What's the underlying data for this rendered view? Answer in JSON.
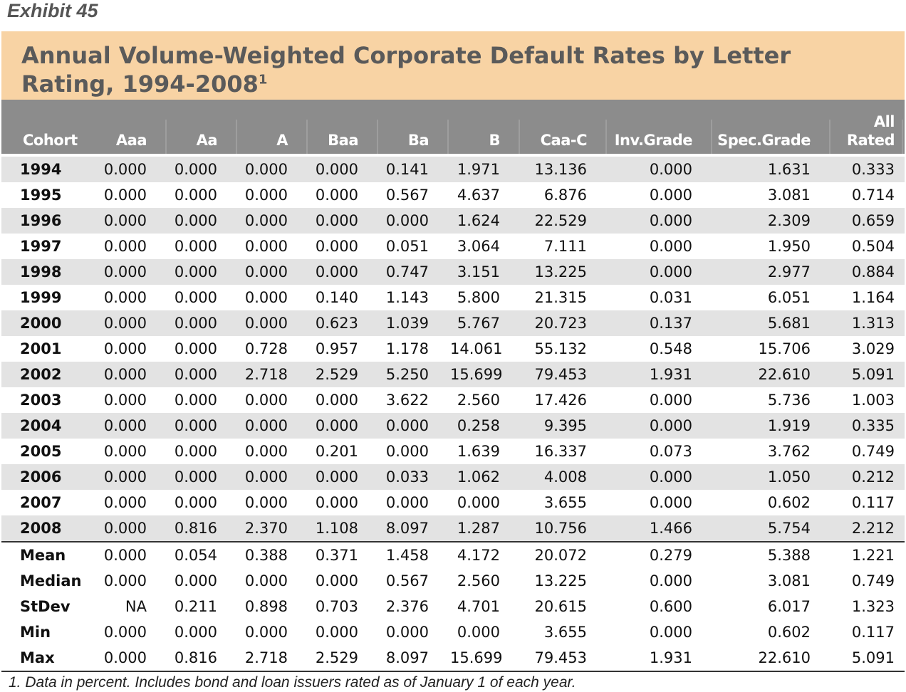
{
  "exhibit_label": "Exhibit 45",
  "title": {
    "text": "Annual Volume-Weighted Corporate Default Rates by Letter Rating, 1994-2008",
    "footnote_marker": "1"
  },
  "columns": [
    {
      "label": "Cohort",
      "label_top": ""
    },
    {
      "label": "Aaa",
      "label_top": ""
    },
    {
      "label": "Aa",
      "label_top": ""
    },
    {
      "label": "A",
      "label_top": ""
    },
    {
      "label": "Baa",
      "label_top": ""
    },
    {
      "label": "Ba",
      "label_top": ""
    },
    {
      "label": "B",
      "label_top": ""
    },
    {
      "label": "Caa-C",
      "label_top": ""
    },
    {
      "label": "Inv.Grade",
      "label_top": ""
    },
    {
      "label": "Spec.Grade",
      "label_top": ""
    },
    {
      "label": "Rated",
      "label_top": "All"
    }
  ],
  "rows": [
    [
      "1994",
      "0.000",
      "0.000",
      "0.000",
      "0.000",
      "0.141",
      "1.971",
      "13.136",
      "0.000",
      "1.631",
      "0.333"
    ],
    [
      "1995",
      "0.000",
      "0.000",
      "0.000",
      "0.000",
      "0.567",
      "4.637",
      "6.876",
      "0.000",
      "3.081",
      "0.714"
    ],
    [
      "1996",
      "0.000",
      "0.000",
      "0.000",
      "0.000",
      "0.000",
      "1.624",
      "22.529",
      "0.000",
      "2.309",
      "0.659"
    ],
    [
      "1997",
      "0.000",
      "0.000",
      "0.000",
      "0.000",
      "0.051",
      "3.064",
      "7.111",
      "0.000",
      "1.950",
      "0.504"
    ],
    [
      "1998",
      "0.000",
      "0.000",
      "0.000",
      "0.000",
      "0.747",
      "3.151",
      "13.225",
      "0.000",
      "2.977",
      "0.884"
    ],
    [
      "1999",
      "0.000",
      "0.000",
      "0.000",
      "0.140",
      "1.143",
      "5.800",
      "21.315",
      "0.031",
      "6.051",
      "1.164"
    ],
    [
      "2000",
      "0.000",
      "0.000",
      "0.000",
      "0.623",
      "1.039",
      "5.767",
      "20.723",
      "0.137",
      "5.681",
      "1.313"
    ],
    [
      "2001",
      "0.000",
      "0.000",
      "0.728",
      "0.957",
      "1.178",
      "14.061",
      "55.132",
      "0.548",
      "15.706",
      "3.029"
    ],
    [
      "2002",
      "0.000",
      "0.000",
      "2.718",
      "2.529",
      "5.250",
      "15.699",
      "79.453",
      "1.931",
      "22.610",
      "5.091"
    ],
    [
      "2003",
      "0.000",
      "0.000",
      "0.000",
      "0.000",
      "3.622",
      "2.560",
      "17.426",
      "0.000",
      "5.736",
      "1.003"
    ],
    [
      "2004",
      "0.000",
      "0.000",
      "0.000",
      "0.000",
      "0.000",
      "0.258",
      "9.395",
      "0.000",
      "1.919",
      "0.335"
    ],
    [
      "2005",
      "0.000",
      "0.000",
      "0.000",
      "0.201",
      "0.000",
      "1.639",
      "16.337",
      "0.073",
      "3.762",
      "0.749"
    ],
    [
      "2006",
      "0.000",
      "0.000",
      "0.000",
      "0.000",
      "0.033",
      "1.062",
      "4.008",
      "0.000",
      "1.050",
      "0.212"
    ],
    [
      "2007",
      "0.000",
      "0.000",
      "0.000",
      "0.000",
      "0.000",
      "0.000",
      "3.655",
      "0.000",
      "0.602",
      "0.117"
    ],
    [
      "2008",
      "0.000",
      "0.816",
      "2.370",
      "1.108",
      "8.097",
      "1.287",
      "10.756",
      "1.466",
      "5.754",
      "2.212"
    ]
  ],
  "stats": [
    [
      "Mean",
      "0.000",
      "0.054",
      "0.388",
      "0.371",
      "1.458",
      "4.172",
      "20.072",
      "0.279",
      "5.388",
      "1.221"
    ],
    [
      "Median",
      "0.000",
      "0.000",
      "0.000",
      "0.000",
      "0.567",
      "2.560",
      "13.225",
      "0.000",
      "3.081",
      "0.749"
    ],
    [
      "StDev",
      "NA",
      "0.211",
      "0.898",
      "0.703",
      "2.376",
      "4.701",
      "20.615",
      "0.600",
      "6.017",
      "1.323"
    ],
    [
      "Min",
      "0.000",
      "0.000",
      "0.000",
      "0.000",
      "0.000",
      "0.000",
      "3.655",
      "0.000",
      "0.602",
      "0.117"
    ],
    [
      "Max",
      "0.000",
      "0.816",
      "2.718",
      "2.529",
      "8.097",
      "15.699",
      "79.453",
      "1.931",
      "22.610",
      "5.091"
    ]
  ],
  "footnote": "1. Data in percent. Includes bond and loan issuers rated as of January 1 of each year.",
  "colors": {
    "title_band": "#f8d3a4",
    "header_band": "#8c8c8c",
    "row_shade": "#e3e3e3",
    "title_text": "#5a5a5a"
  }
}
